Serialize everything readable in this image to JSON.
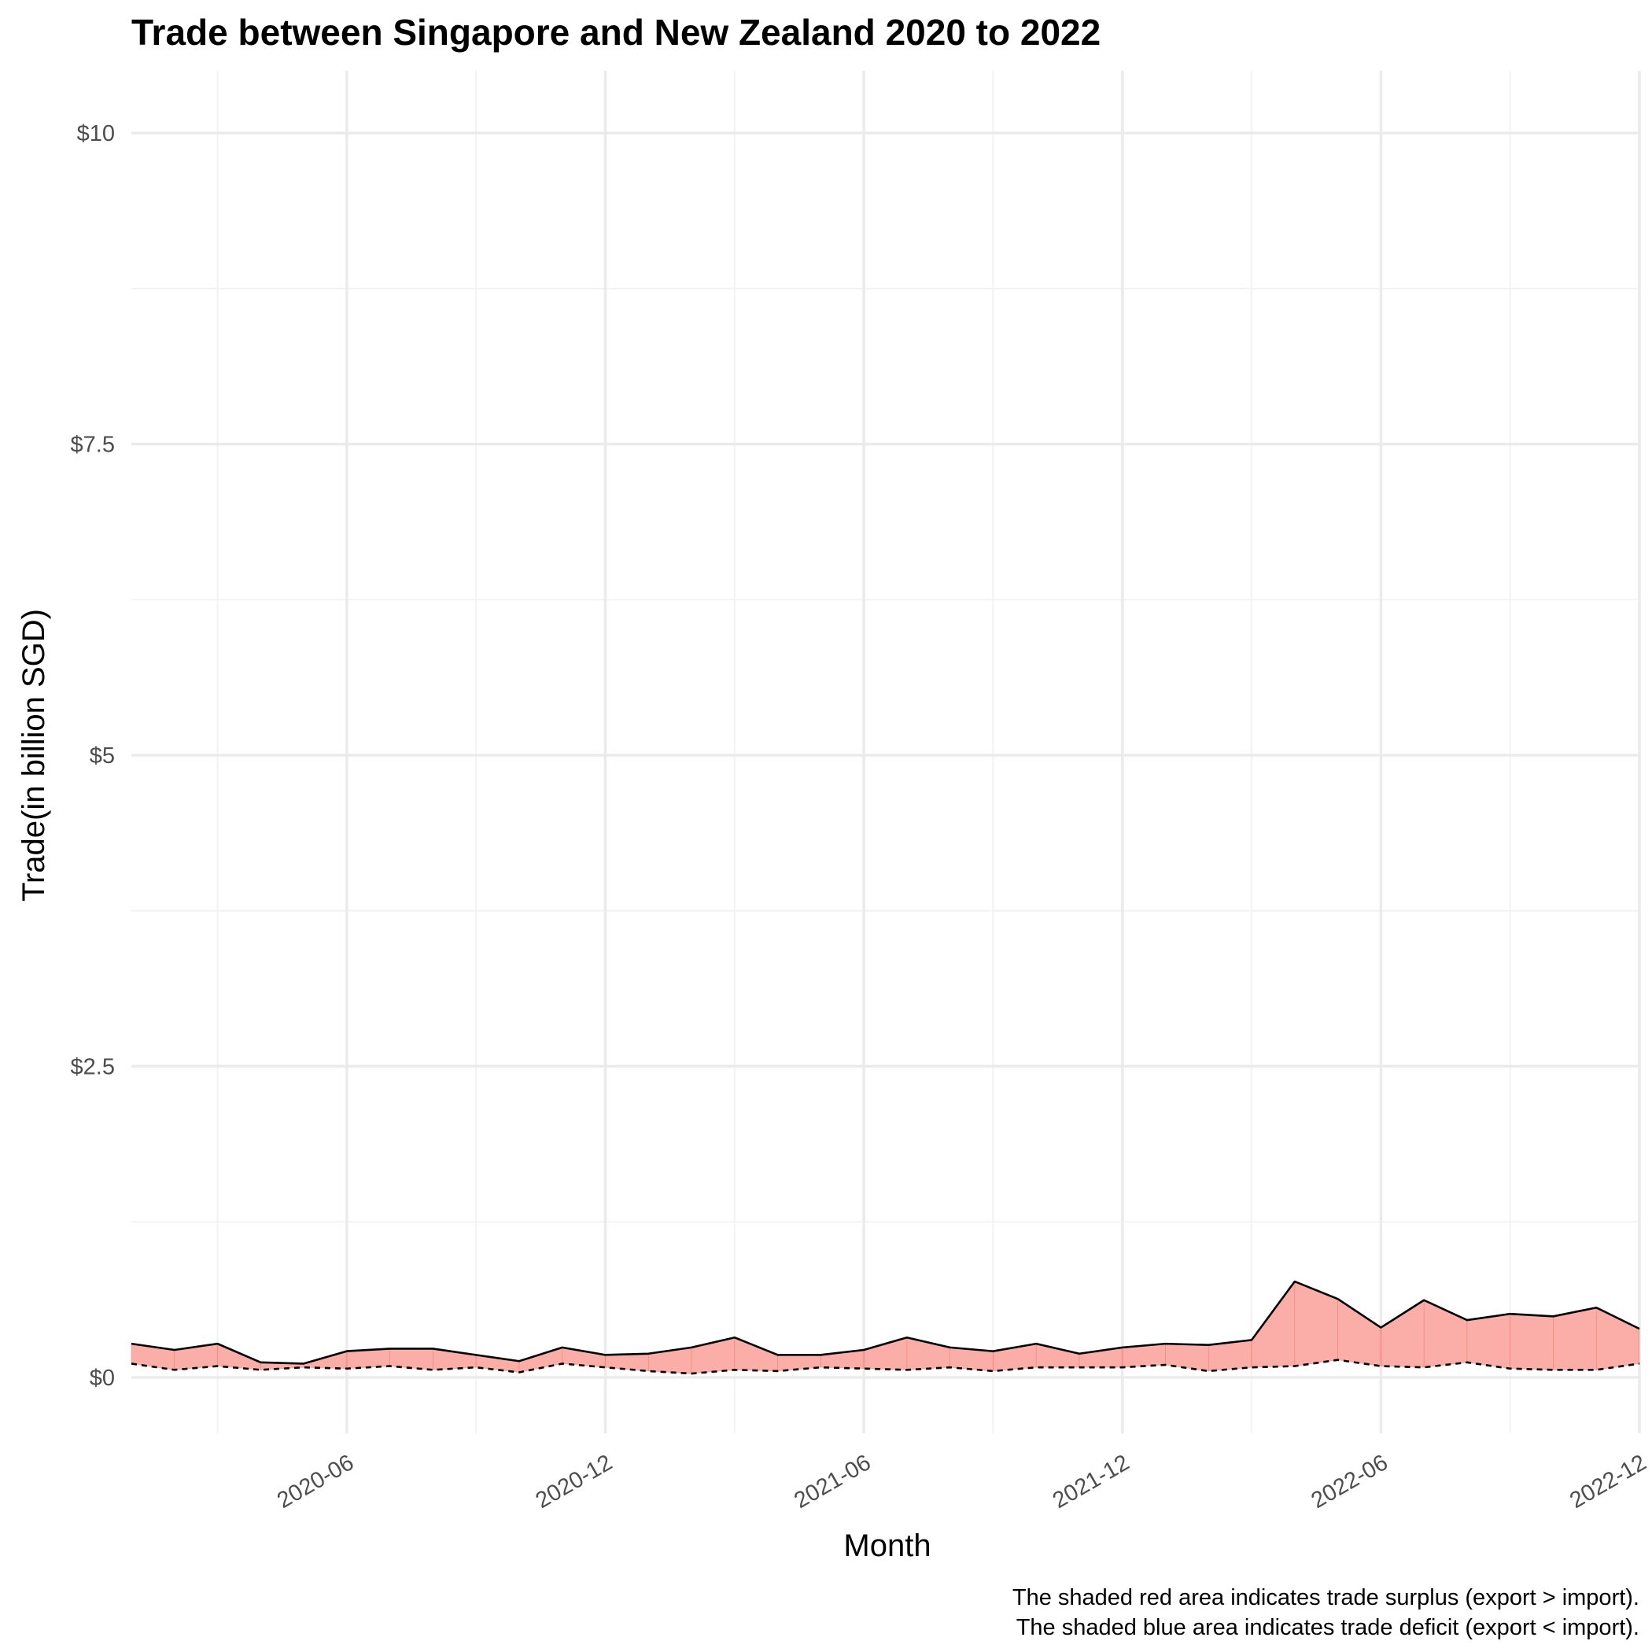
{
  "chart_data": {
    "type": "area",
    "title": "Trade between Singapore and New Zealand  2020 to 2022",
    "xlabel": "Month",
    "ylabel": "Trade(in billion SGD)",
    "caption_lines": [
      "The shaded red area indicates trade surplus (export > import).",
      "The shaded blue area indicates trade deficit (export < import)."
    ],
    "x_range": [
      "2020-01",
      "2022-12"
    ],
    "ylim": [
      -0.45,
      10.5
    ],
    "y_ticks": [
      {
        "value": 0,
        "label": "$0"
      },
      {
        "value": 2.5,
        "label": "$2.5"
      },
      {
        "value": 5,
        "label": "$5"
      },
      {
        "value": 7.5,
        "label": "$7.5"
      },
      {
        "value": 10,
        "label": "$10"
      }
    ],
    "y_minor_ticks": [
      1.25,
      3.75,
      6.25,
      8.75
    ],
    "x_ticks": [
      "2020-06",
      "2020-12",
      "2021-06",
      "2021-12",
      "2022-06",
      "2022-12"
    ],
    "x_minor_ticks": [
      "2020-03",
      "2020-09",
      "2021-03",
      "2021-09",
      "2022-03",
      "2022-09"
    ],
    "surplus_color": "#f8766d",
    "deficit_color": "#00bfc4",
    "x": [
      "2020-01",
      "2020-02",
      "2020-03",
      "2020-04",
      "2020-05",
      "2020-06",
      "2020-07",
      "2020-08",
      "2020-09",
      "2020-10",
      "2020-11",
      "2020-12",
      "2021-01",
      "2021-02",
      "2021-03",
      "2021-04",
      "2021-05",
      "2021-06",
      "2021-07",
      "2021-08",
      "2021-09",
      "2021-10",
      "2021-11",
      "2021-12",
      "2022-01",
      "2022-02",
      "2022-03",
      "2022-04",
      "2022-05",
      "2022-06",
      "2022-07",
      "2022-08",
      "2022-09",
      "2022-10",
      "2022-11",
      "2022-12"
    ],
    "series": [
      {
        "line_style": "solid",
        "values": [
          0.27,
          0.22,
          0.27,
          0.12,
          0.11,
          0.21,
          0.23,
          0.23,
          0.18,
          0.13,
          0.24,
          0.18,
          0.19,
          0.24,
          0.32,
          0.18,
          0.18,
          0.22,
          0.32,
          0.24,
          0.21,
          0.27,
          0.19,
          0.24,
          0.27,
          0.26,
          0.3,
          0.77,
          0.63,
          0.4,
          0.62,
          0.46,
          0.51,
          0.49,
          0.56,
          0.39
        ]
      },
      {
        "line_style": "dashed",
        "values": [
          0.11,
          0.06,
          0.09,
          0.06,
          0.08,
          0.07,
          0.09,
          0.06,
          0.08,
          0.04,
          0.11,
          0.08,
          0.05,
          0.03,
          0.06,
          0.05,
          0.08,
          0.07,
          0.06,
          0.08,
          0.05,
          0.08,
          0.08,
          0.08,
          0.1,
          0.05,
          0.08,
          0.09,
          0.14,
          0.09,
          0.08,
          0.12,
          0.07,
          0.06,
          0.06,
          0.11
        ]
      }
    ]
  }
}
